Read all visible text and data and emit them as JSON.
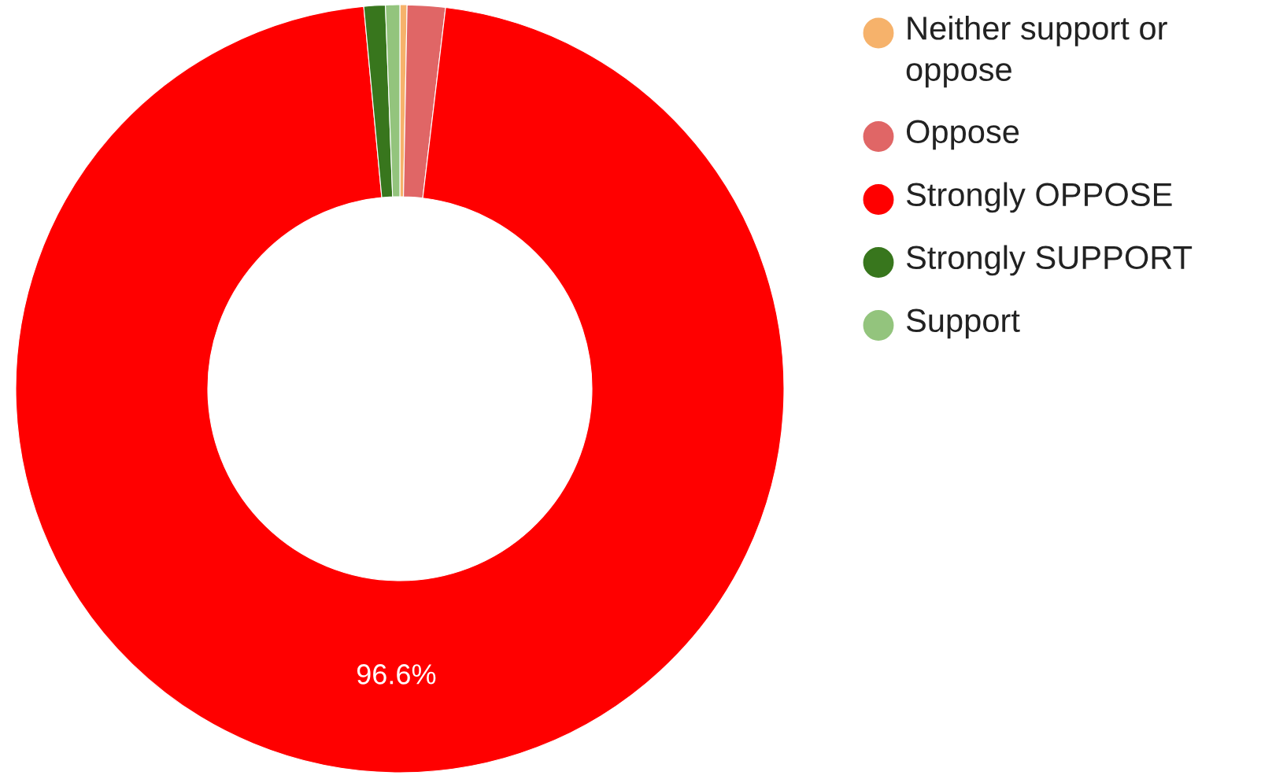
{
  "chart_data": {
    "type": "donut",
    "categories": [
      "Neither support or oppose",
      "Oppose",
      "Strongly OPPOSE",
      "Strongly SUPPORT",
      "Support"
    ],
    "values": [
      0.3,
      1.6,
      96.6,
      0.9,
      0.6
    ],
    "colors": [
      "#f6b26b",
      "#e06666",
      "#ff0000",
      "#38761d",
      "#93c47d"
    ],
    "value_labels": [
      null,
      null,
      "96.6%",
      null,
      null
    ],
    "legend": "right"
  }
}
